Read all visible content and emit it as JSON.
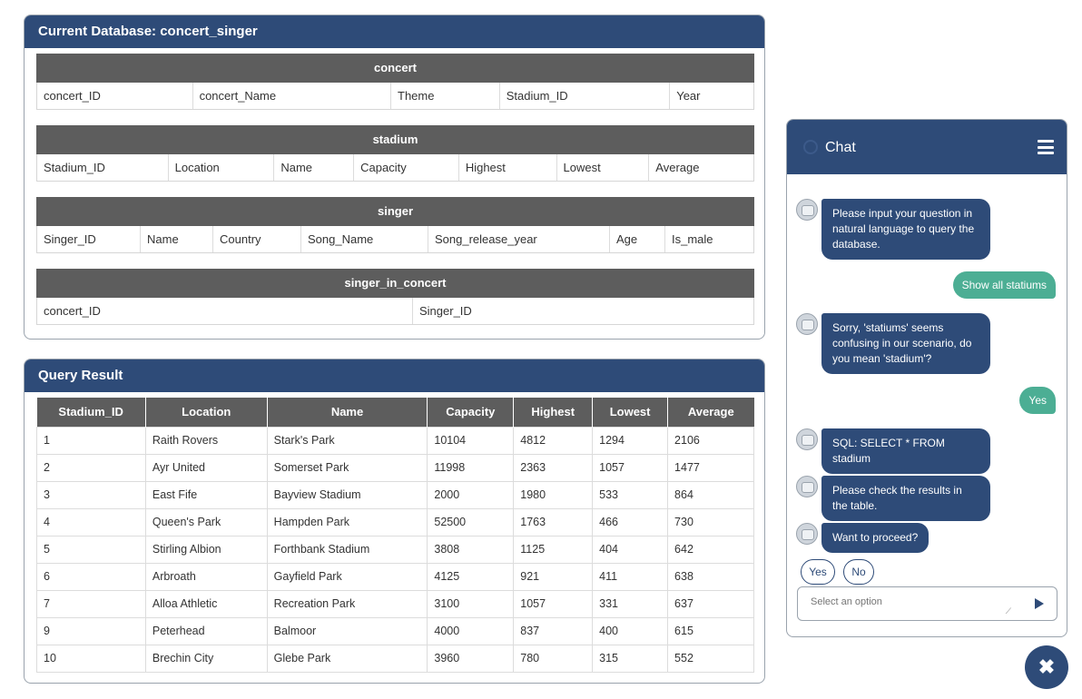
{
  "database": {
    "title": "Current Database: concert_singer",
    "tables": [
      {
        "name": "concert",
        "columns": [
          "concert_ID",
          "concert_Name",
          "Theme",
          "Stadium_ID",
          "Year"
        ]
      },
      {
        "name": "stadium",
        "columns": [
          "Stadium_ID",
          "Location",
          "Name",
          "Capacity",
          "Highest",
          "Lowest",
          "Average"
        ]
      },
      {
        "name": "singer",
        "columns": [
          "Singer_ID",
          "Name",
          "Country",
          "Song_Name",
          "Song_release_year",
          "Age",
          "Is_male"
        ]
      },
      {
        "name": "singer_in_concert",
        "columns": [
          "concert_ID",
          "Singer_ID"
        ]
      }
    ]
  },
  "result": {
    "title": "Query Result",
    "headers": [
      "Stadium_ID",
      "Location",
      "Name",
      "Capacity",
      "Highest",
      "Lowest",
      "Average"
    ],
    "rows": [
      [
        "1",
        "Raith Rovers",
        "Stark's Park",
        "10104",
        "4812",
        "1294",
        "2106"
      ],
      [
        "2",
        "Ayr United",
        "Somerset Park",
        "11998",
        "2363",
        "1057",
        "1477"
      ],
      [
        "3",
        "East Fife",
        "Bayview Stadium",
        "2000",
        "1980",
        "533",
        "864"
      ],
      [
        "4",
        "Queen's Park",
        "Hampden Park",
        "52500",
        "1763",
        "466",
        "730"
      ],
      [
        "5",
        "Stirling Albion",
        "Forthbank Stadium",
        "3808",
        "1125",
        "404",
        "642"
      ],
      [
        "6",
        "Arbroath",
        "Gayfield Park",
        "4125",
        "921",
        "411",
        "638"
      ],
      [
        "7",
        "Alloa Athletic",
        "Recreation Park",
        "3100",
        "1057",
        "331",
        "637"
      ],
      [
        "9",
        "Peterhead",
        "Balmoor",
        "4000",
        "837",
        "400",
        "615"
      ],
      [
        "10",
        "Brechin City",
        "Glebe Park",
        "3960",
        "780",
        "315",
        "552"
      ]
    ]
  },
  "chat": {
    "title": "Chat",
    "messages": {
      "m1": "Please input your question in natural language to query the database.",
      "u1": "Show all statiums",
      "m2": "Sorry, 'statiums' seems confusing in our scenario, do you mean 'stadium'?",
      "u2": "Yes",
      "m3": "SQL: SELECT * FROM stadium",
      "m4": "Please check the results in the table.",
      "m5": "Want to proceed?"
    },
    "options": [
      "Yes",
      "No"
    ],
    "input_placeholder": "Select an option"
  },
  "colors": {
    "header": "#2e4b78",
    "table_header": "#5d5d5d",
    "user_bubble": "#4cae94"
  },
  "icons": [
    "chat-logo-icon",
    "menu-icon",
    "robot-avatar-icon",
    "send-icon",
    "close-icon"
  ]
}
